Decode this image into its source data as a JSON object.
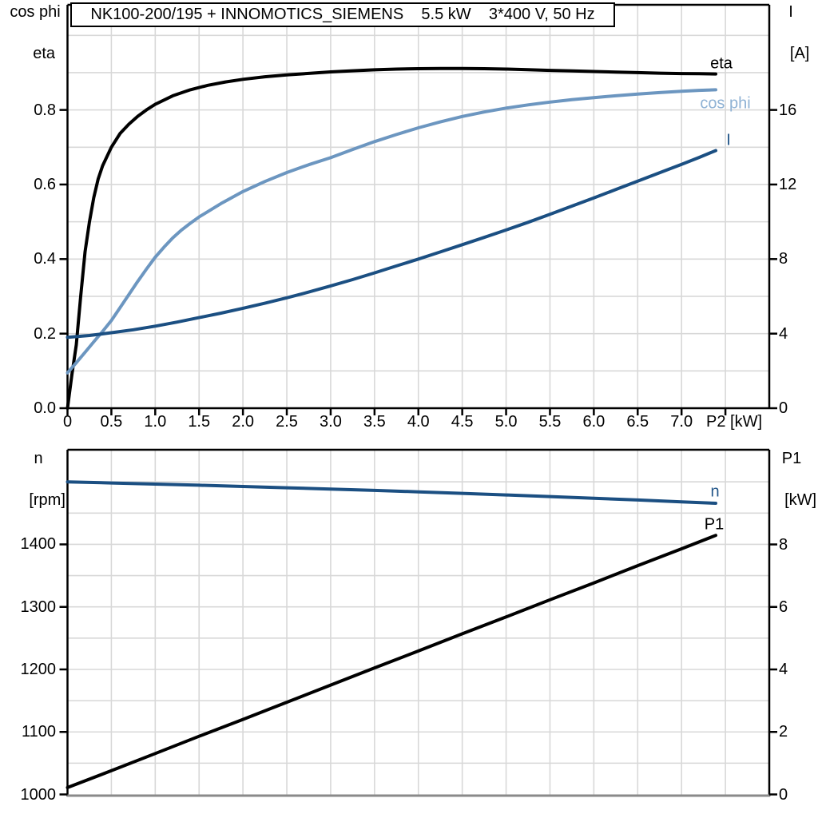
{
  "title_box": "NK100-200/195 + INNOMOTICS_SIEMENS    5.5 kW    3*400 V, 50 Hz",
  "axes_titles": {
    "top_left": [
      "cos phi",
      "eta"
    ],
    "top_right": [
      "I",
      "[A]"
    ],
    "bottom_left": [
      "n",
      "[rpm]"
    ],
    "bottom_right": [
      "P1",
      "[kW]"
    ]
  },
  "colors": {
    "grid": "#D8D8D8",
    "frame": "#000000",
    "bottom_baseline": "#8A8A8A",
    "black_curve": "#000000",
    "light_blue_curve": "#6C96C0",
    "light_blue_label": "#8FB2D4",
    "dark_blue_curve": "#1B4F82",
    "dark_blue_label": "#24578A"
  },
  "chart_data": [
    {
      "type": "line",
      "x": {
        "min": 0,
        "max": 8,
        "grid_from": 0.5,
        "grid_to": 7.5,
        "grid_step": 0.5,
        "axis_label": "P2 [kW]",
        "ticks": [
          {
            "v": 0,
            "label": "0"
          },
          {
            "v": 0.5,
            "label": "0.5"
          },
          {
            "v": 1,
            "label": "1.0"
          },
          {
            "v": 1.5,
            "label": "1.5"
          },
          {
            "v": 2,
            "label": "2.0"
          },
          {
            "v": 2.5,
            "label": "2.5"
          },
          {
            "v": 3,
            "label": "3.0"
          },
          {
            "v": 3.5,
            "label": "3.5"
          },
          {
            "v": 4,
            "label": "4.0"
          },
          {
            "v": 4.5,
            "label": "4.5"
          },
          {
            "v": 5,
            "label": "5.0"
          },
          {
            "v": 5.5,
            "label": "5.5"
          },
          {
            "v": 6,
            "label": "6.0"
          },
          {
            "v": 6.5,
            "label": "6.5"
          },
          {
            "v": 7,
            "label": "7.0"
          }
        ]
      },
      "y_left": {
        "min": 0,
        "max": 1.082,
        "grid_from": 0.1,
        "grid_to": 1.0,
        "grid_step": 0.1,
        "ticks": [
          {
            "v": 0,
            "label": "0.0"
          },
          {
            "v": 0.2,
            "label": "0.2"
          },
          {
            "v": 0.4,
            "label": "0.4"
          },
          {
            "v": 0.6,
            "label": "0.6"
          },
          {
            "v": 0.8,
            "label": "0.8"
          }
        ]
      },
      "y_right": {
        "min": 0,
        "max": 21.64,
        "ticks": [
          {
            "v": 0,
            "label": "0"
          },
          {
            "v": 4,
            "label": "4"
          },
          {
            "v": 8,
            "label": "8"
          },
          {
            "v": 12,
            "label": "12"
          },
          {
            "v": 16,
            "label": "16"
          }
        ]
      },
      "series": [
        {
          "name": "eta",
          "axis": "left",
          "color": "#000000",
          "label_color": "#000000",
          "points": [
            [
              0,
              0
            ],
            [
              0.05,
              0.09
            ],
            [
              0.1,
              0.17
            ],
            [
              0.15,
              0.3
            ],
            [
              0.2,
              0.42
            ],
            [
              0.25,
              0.5
            ],
            [
              0.3,
              0.565
            ],
            [
              0.35,
              0.615
            ],
            [
              0.4,
              0.65
            ],
            [
              0.5,
              0.7
            ],
            [
              0.6,
              0.737
            ],
            [
              0.7,
              0.762
            ],
            [
              0.8,
              0.783
            ],
            [
              0.9,
              0.8
            ],
            [
              1.0,
              0.815
            ],
            [
              1.2,
              0.838
            ],
            [
              1.4,
              0.854
            ],
            [
              1.6,
              0.866
            ],
            [
              1.8,
              0.875
            ],
            [
              2.0,
              0.882
            ],
            [
              2.25,
              0.889
            ],
            [
              2.5,
              0.894
            ],
            [
              2.75,
              0.898
            ],
            [
              3.0,
              0.902
            ],
            [
              3.25,
              0.905
            ],
            [
              3.5,
              0.9075
            ],
            [
              3.75,
              0.9095
            ],
            [
              4.0,
              0.9105
            ],
            [
              4.25,
              0.911
            ],
            [
              4.5,
              0.911
            ],
            [
              4.75,
              0.9105
            ],
            [
              5.0,
              0.9095
            ],
            [
              5.25,
              0.908
            ],
            [
              5.5,
              0.906
            ],
            [
              5.75,
              0.9045
            ],
            [
              6.0,
              0.903
            ],
            [
              6.25,
              0.9015
            ],
            [
              6.5,
              0.9
            ],
            [
              6.75,
              0.8985
            ],
            [
              7.0,
              0.8975
            ],
            [
              7.2,
              0.897
            ],
            [
              7.39,
              0.8965
            ]
          ]
        },
        {
          "name": "cos phi",
          "axis": "left",
          "color": "#6C96C0",
          "label_color": "#8FB2D4",
          "points": [
            [
              0,
              0.095
            ],
            [
              0.1,
              0.122
            ],
            [
              0.2,
              0.15
            ],
            [
              0.3,
              0.178
            ],
            [
              0.4,
              0.206
            ],
            [
              0.5,
              0.235
            ],
            [
              0.6,
              0.27
            ],
            [
              0.7,
              0.305
            ],
            [
              0.8,
              0.34
            ],
            [
              0.9,
              0.373
            ],
            [
              1.0,
              0.405
            ],
            [
              1.1,
              0.432
            ],
            [
              1.2,
              0.457
            ],
            [
              1.3,
              0.478
            ],
            [
              1.4,
              0.496
            ],
            [
              1.5,
              0.513
            ],
            [
              1.75,
              0.549
            ],
            [
              2.0,
              0.581
            ],
            [
              2.25,
              0.608
            ],
            [
              2.5,
              0.632
            ],
            [
              2.75,
              0.653
            ],
            [
              3.0,
              0.672
            ],
            [
              3.25,
              0.694
            ],
            [
              3.5,
              0.715
            ],
            [
              3.75,
              0.734
            ],
            [
              4.0,
              0.752
            ],
            [
              4.25,
              0.768
            ],
            [
              4.5,
              0.7825
            ],
            [
              4.75,
              0.7945
            ],
            [
              5.0,
              0.805
            ],
            [
              5.25,
              0.8135
            ],
            [
              5.5,
              0.821
            ],
            [
              5.75,
              0.8275
            ],
            [
              6.0,
              0.833
            ],
            [
              6.25,
              0.838
            ],
            [
              6.5,
              0.8425
            ],
            [
              6.75,
              0.8465
            ],
            [
              7.0,
              0.85
            ],
            [
              7.2,
              0.8525
            ],
            [
              7.39,
              0.854
            ]
          ]
        },
        {
          "name": "I",
          "axis": "right",
          "color": "#1B4F82",
          "label_color": "#24578A",
          "points": [
            [
              0,
              3.8
            ],
            [
              0.25,
              3.9
            ],
            [
              0.5,
              4.05
            ],
            [
              0.75,
              4.21
            ],
            [
              1.0,
              4.4
            ],
            [
              1.25,
              4.62
            ],
            [
              1.5,
              4.86
            ],
            [
              1.75,
              5.1
            ],
            [
              2.0,
              5.36
            ],
            [
              2.25,
              5.63
            ],
            [
              2.5,
              5.92
            ],
            [
              2.75,
              6.23
            ],
            [
              3.0,
              6.56
            ],
            [
              3.25,
              6.9
            ],
            [
              3.5,
              7.26
            ],
            [
              3.75,
              7.63
            ],
            [
              4.0,
              8.0
            ],
            [
              4.25,
              8.38
            ],
            [
              4.5,
              8.77
            ],
            [
              4.75,
              9.16
            ],
            [
              5.0,
              9.56
            ],
            [
              5.25,
              9.97
            ],
            [
              5.5,
              10.4
            ],
            [
              5.75,
              10.84
            ],
            [
              6.0,
              11.28
            ],
            [
              6.25,
              11.73
            ],
            [
              6.5,
              12.18
            ],
            [
              6.75,
              12.63
            ],
            [
              7.0,
              13.08
            ],
            [
              7.2,
              13.45
            ],
            [
              7.39,
              13.82
            ]
          ]
        }
      ]
    },
    {
      "type": "line",
      "x": {
        "min": 0,
        "max": 8,
        "grid_from": 0.5,
        "grid_to": 7.5,
        "grid_step": 0.5,
        "axis_label": "",
        "ticks": []
      },
      "y_left": {
        "min": 1000,
        "max": 1551.4,
        "grid_from": 1050,
        "grid_to": 1500,
        "grid_step": 50,
        "ticks": [
          {
            "v": 1000,
            "label": "1000"
          },
          {
            "v": 1100,
            "label": "1100"
          },
          {
            "v": 1200,
            "label": "1200"
          },
          {
            "v": 1300,
            "label": "1300"
          },
          {
            "v": 1400,
            "label": "1400"
          }
        ]
      },
      "y_right": {
        "min": 0,
        "max": 11.03,
        "ticks": [
          {
            "v": 0,
            "label": "0"
          },
          {
            "v": 2,
            "label": "2"
          },
          {
            "v": 4,
            "label": "4"
          },
          {
            "v": 6,
            "label": "6"
          },
          {
            "v": 8,
            "label": "8"
          }
        ]
      },
      "series": [
        {
          "name": "n",
          "axis": "left",
          "color": "#1B4F82",
          "label_color": "#24578A",
          "points": [
            [
              0,
              1500
            ],
            [
              0.5,
              1498.3
            ],
            [
              1,
              1496.5
            ],
            [
              1.5,
              1494.6
            ],
            [
              2,
              1492.6
            ],
            [
              2.5,
              1490.6
            ],
            [
              3,
              1488.5
            ],
            [
              3.5,
              1486.3
            ],
            [
              4,
              1484
            ],
            [
              4.5,
              1481.6
            ],
            [
              5,
              1479.1
            ],
            [
              5.5,
              1476.5
            ],
            [
              6,
              1473.8
            ],
            [
              6.5,
              1471
            ],
            [
              7,
              1468.1
            ],
            [
              7.39,
              1465.8
            ]
          ]
        },
        {
          "name": "P1",
          "axis": "right",
          "color": "#000000",
          "label_color": "#000000",
          "points": [
            [
              0,
              0.22
            ],
            [
              0.5,
              0.76
            ],
            [
              1,
              1.31
            ],
            [
              1.5,
              1.86
            ],
            [
              2,
              2.4
            ],
            [
              2.5,
              2.95
            ],
            [
              3,
              3.5
            ],
            [
              3.5,
              4.05
            ],
            [
              4,
              4.59
            ],
            [
              4.5,
              5.14
            ],
            [
              5,
              5.68
            ],
            [
              5.5,
              6.23
            ],
            [
              6,
              6.77
            ],
            [
              6.5,
              7.32
            ],
            [
              7,
              7.86
            ],
            [
              7.39,
              8.29
            ]
          ]
        }
      ]
    }
  ]
}
